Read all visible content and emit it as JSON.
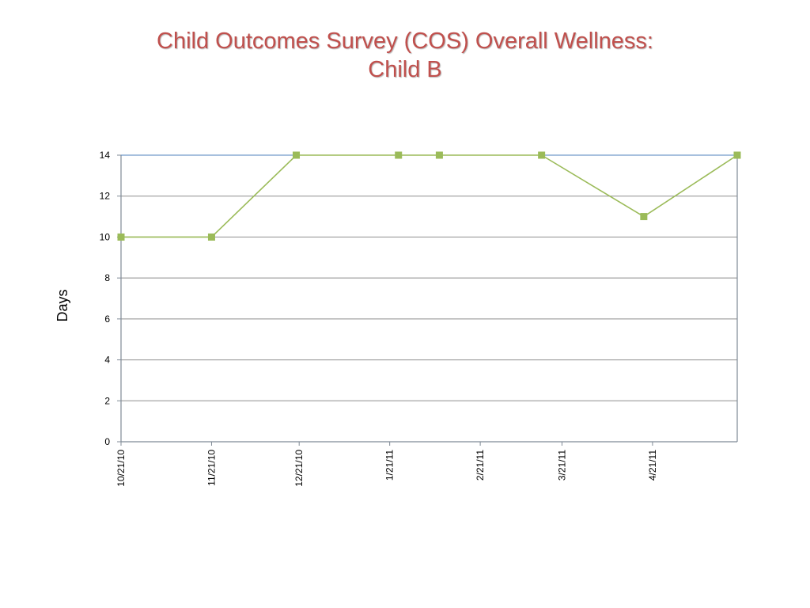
{
  "slide": {
    "title_line1": "Child Outcomes Survey (COS) Overall Wellness:",
    "title_line2": "Child B",
    "title_color": "#c0504d"
  },
  "chart_data": {
    "type": "line",
    "title": "",
    "xlabel": "",
    "ylabel": "Days",
    "ylim": [
      0,
      14
    ],
    "xlim": [
      "2010-10-21",
      "2011-05-20"
    ],
    "y_ticks": [
      0,
      2,
      4,
      6,
      8,
      10,
      12,
      14
    ],
    "x_ticks": [
      {
        "date": "2010-10-21",
        "label": "10/21/10"
      },
      {
        "date": "2010-11-21",
        "label": "11/21/10"
      },
      {
        "date": "2010-12-21",
        "label": "12/21/10"
      },
      {
        "date": "2011-01-21",
        "label": "1/21/11"
      },
      {
        "date": "2011-02-21",
        "label": "2/21/11"
      },
      {
        "date": "2011-03-21",
        "label": "3/21/11"
      },
      {
        "date": "2011-04-21",
        "label": "4/21/11"
      }
    ],
    "grid": true,
    "legend": "none",
    "series": [
      {
        "color": "#9bbb59",
        "marker": "square",
        "points": [
          {
            "x": "2010-10-21",
            "y": 10
          },
          {
            "x": "2010-11-21",
            "y": 10
          },
          {
            "x": "2010-12-20",
            "y": 14
          },
          {
            "x": "2011-01-24",
            "y": 14
          },
          {
            "x": "2011-02-07",
            "y": 14
          },
          {
            "x": "2011-03-14",
            "y": 14
          },
          {
            "x": "2011-04-18",
            "y": 11
          },
          {
            "x": "2011-05-20",
            "y": 14
          }
        ]
      }
    ]
  }
}
